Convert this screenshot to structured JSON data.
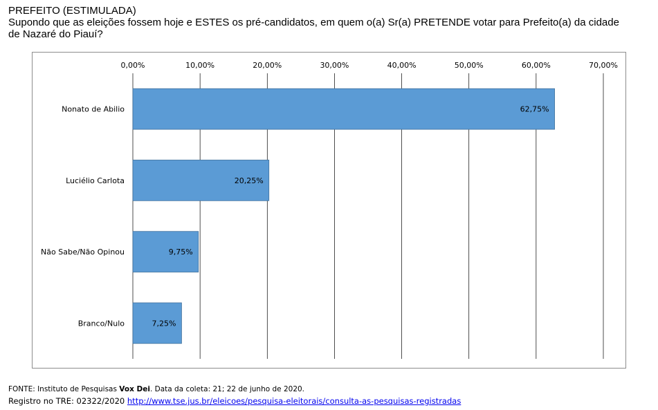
{
  "header": {
    "title": "PREFEITO (ESTIMULADA)",
    "question": "Supondo que as eleições fossem hoje e ESTES os pré-candidatos, em quem o(a) Sr(a) PRETENDE votar para Prefeito(a) da cidade de Nazaré do Piauí?"
  },
  "chart_data": {
    "type": "bar",
    "orientation": "horizontal",
    "categories": [
      "Nonato de Abilio",
      "Luciélio Carlota",
      "Não Sabe/Não Opinou",
      "Branco/Nulo"
    ],
    "values": [
      62.75,
      20.25,
      9.75,
      7.25
    ],
    "value_labels": [
      "62,75%",
      "20,25%",
      "9,75%",
      "7,25%"
    ],
    "xlim": [
      0,
      70
    ],
    "x_ticks": [
      0,
      10,
      20,
      30,
      40,
      50,
      60,
      70
    ],
    "x_tick_labels": [
      "0,00%",
      "10,00%",
      "20,00%",
      "30,00%",
      "40,00%",
      "50,00%",
      "60,00%",
      "70,00%"
    ],
    "axis_position": "top",
    "grid": true,
    "bar_color": "#5b9bd5"
  },
  "footer": {
    "source_prefix": "FONTE: Instituto de Pesquisas ",
    "source_institute": "Vox Dei",
    "source_suffix": ". Data da coleta: 21; 22 de junho de 2020.",
    "registry_prefix": "Registro no TRE: 02322/2020 ",
    "registry_link": "http://www.tse.jus.br/eleicoes/pesquisa-eleitorais/consulta-as-pesquisas-registradas"
  }
}
